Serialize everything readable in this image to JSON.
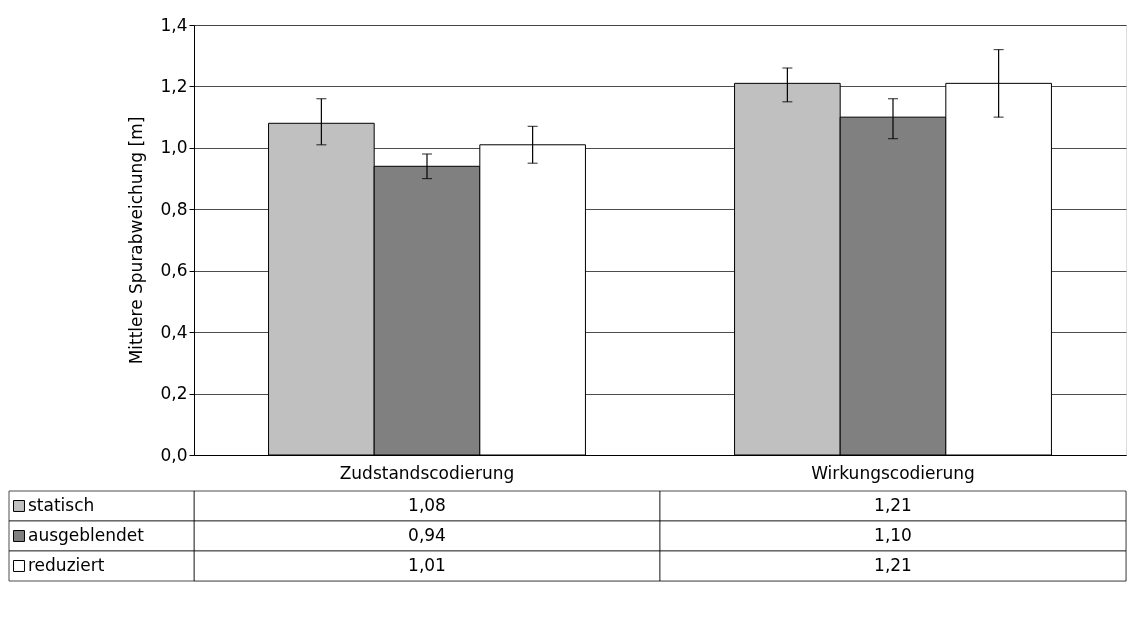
{
  "chart_data": {
    "type": "bar",
    "ylabel": "Mittlere Spurabweichung [m]",
    "categories": [
      "Zudstandscodierung",
      "Wirkungscodierung"
    ],
    "series": [
      {
        "name": "statisch",
        "color": "#c0c0c0",
        "values": [
          1.08,
          1.21
        ],
        "value_labels": [
          "1,08",
          "1,21"
        ],
        "errors": [
          [
            1.01,
            1.16
          ],
          [
            1.15,
            1.26
          ]
        ]
      },
      {
        "name": "ausgeblendet",
        "color": "#808080",
        "values": [
          0.94,
          1.1
        ],
        "value_labels": [
          "0,94",
          "1,10"
        ],
        "errors": [
          [
            0.9,
            0.98
          ],
          [
            1.03,
            1.16
          ]
        ]
      },
      {
        "name": "reduziert",
        "color": "#ffffff",
        "values": [
          1.01,
          1.21
        ],
        "value_labels": [
          "1,01",
          "1,21"
        ],
        "errors": [
          [
            0.95,
            1.07
          ],
          [
            1.1,
            1.32
          ]
        ]
      }
    ],
    "ylim": [
      0,
      1.4
    ],
    "yticks": [
      {
        "value": 0,
        "label": "0,0"
      },
      {
        "value": 0.2,
        "label": "0,2"
      },
      {
        "value": 0.4,
        "label": "0,4"
      },
      {
        "value": 0.6,
        "label": "0,6"
      },
      {
        "value": 0.8,
        "label": "0,8"
      },
      {
        "value": 1.0,
        "label": "1,0"
      },
      {
        "value": 1.2,
        "label": "1,2"
      },
      {
        "value": 1.4,
        "label": "1,4"
      }
    ],
    "grid": "y",
    "legend": "bottom"
  }
}
